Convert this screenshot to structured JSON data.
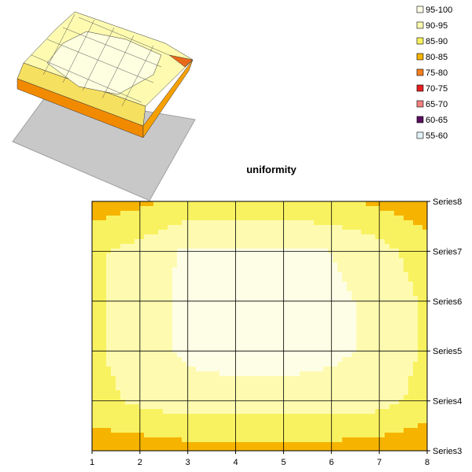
{
  "chart_data": {
    "type": "contour",
    "title": "uniformity",
    "xlabel": "",
    "ylabel": "",
    "x_categories": [
      "1",
      "2",
      "3",
      "4",
      "5",
      "6",
      "7",
      "8"
    ],
    "y_series": [
      "Series3",
      "Series4",
      "Series5",
      "Series6",
      "Series7",
      "Series8"
    ],
    "legend_position": "top-right",
    "grid": true,
    "bands": [
      {
        "label": "95-100",
        "color": "#fefee6"
      },
      {
        "label": "90-95",
        "color": "#fefbb0"
      },
      {
        "label": "85-90",
        "color": "#f9f260"
      },
      {
        "label": "80-85",
        "color": "#f6b400"
      },
      {
        "label": "75-80",
        "color": "#f57f20"
      },
      {
        "label": "70-75",
        "color": "#e52020"
      },
      {
        "label": "65-70",
        "color": "#f28080"
      },
      {
        "label": "60-65",
        "color": "#5a1060"
      },
      {
        "label": "55-60",
        "color": "#e2f2f8"
      }
    ],
    "values": [
      [
        82,
        82,
        83,
        83,
        83,
        83,
        82,
        81
      ],
      [
        88,
        91,
        93,
        93,
        93,
        93,
        92,
        88
      ],
      [
        89,
        93,
        96,
        97,
        97,
        96,
        94,
        89
      ],
      [
        89,
        93,
        96,
        97,
        97,
        96,
        94,
        89
      ],
      [
        89,
        92,
        96,
        96,
        96,
        95,
        92,
        87
      ],
      [
        82,
        84,
        86,
        86,
        86,
        86,
        84,
        82
      ]
    ]
  }
}
